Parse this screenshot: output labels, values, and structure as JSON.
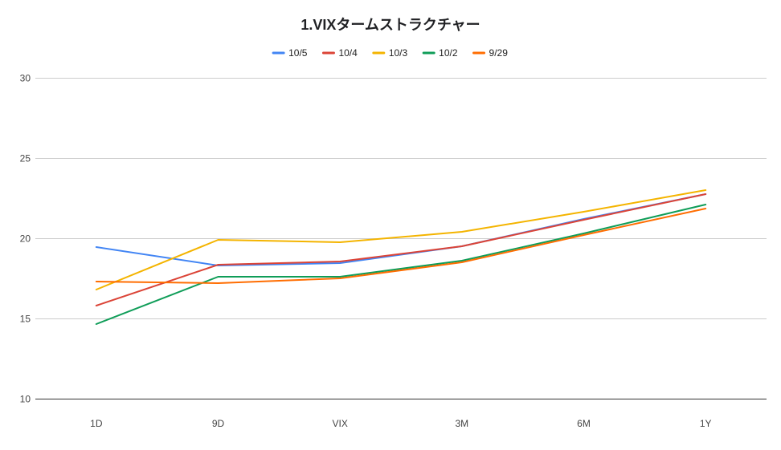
{
  "chart_data": {
    "type": "line",
    "title": "1.VIXタームストラクチャー",
    "xlabel": "",
    "ylabel": "",
    "categories": [
      "1D",
      "9D",
      "VIX",
      "3M",
      "6M",
      "1Y"
    ],
    "ylim": [
      10,
      30
    ],
    "yticks": [
      10,
      15,
      20,
      25,
      30
    ],
    "grid": true,
    "legend_position": "top",
    "series": [
      {
        "name": "10/5",
        "color": "#4285f4",
        "values": [
          19.45,
          18.3,
          18.45,
          19.5,
          21.2,
          22.75
        ]
      },
      {
        "name": "10/4",
        "color": "#db4437",
        "values": [
          15.8,
          18.35,
          18.55,
          19.5,
          21.15,
          22.75
        ]
      },
      {
        "name": "10/3",
        "color": "#f4b400",
        "values": [
          16.8,
          19.9,
          19.75,
          20.4,
          21.65,
          23.0
        ]
      },
      {
        "name": "10/2",
        "color": "#0f9d58",
        "values": [
          14.65,
          17.6,
          17.6,
          18.6,
          20.3,
          22.1
        ]
      },
      {
        "name": "9/29",
        "color": "#ff6d01",
        "values": [
          17.3,
          17.2,
          17.5,
          18.5,
          20.2,
          21.85
        ]
      }
    ]
  }
}
